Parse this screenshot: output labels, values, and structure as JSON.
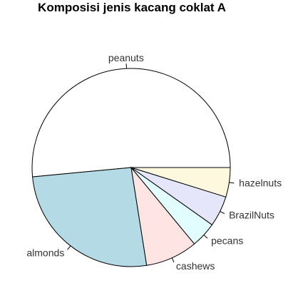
{
  "chart_data": {
    "type": "pie",
    "title": "Komposisi jenis kacang coklat A",
    "direction": "counterclockwise",
    "start_angle_deg": 0,
    "slices": [
      {
        "label": "peanuts",
        "value": 51.5,
        "color": "#ffffff"
      },
      {
        "label": "almonds",
        "value": 26.0,
        "color": "#b4dae6"
      },
      {
        "label": "cashews",
        "value": 8.5,
        "color": "#ffe4e4"
      },
      {
        "label": "pecans",
        "value": 4.2,
        "color": "#e2fdfd"
      },
      {
        "label": "BrazilNuts",
        "value": 5.0,
        "color": "#e6e6fa"
      },
      {
        "label": "hazelnuts",
        "value": 4.8,
        "color": "#fdf8de"
      }
    ]
  }
}
